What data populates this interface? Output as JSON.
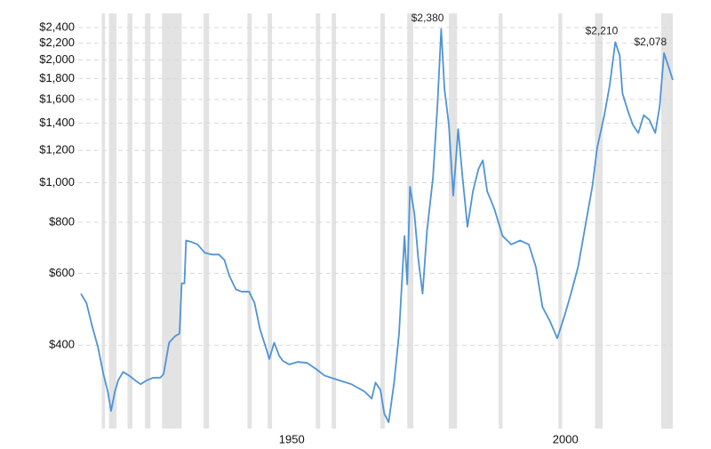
{
  "chart_data": {
    "type": "line",
    "log_scale": true,
    "grid": true,
    "color": "#4f94d4",
    "shade_color": "#e3e3e3",
    "x": [
      1911.5,
      1912.5,
      1913.5,
      1914.6,
      1915.6,
      1916.4,
      1917.0,
      1917.7,
      1918.3,
      1919.2,
      1920.3,
      1921.4,
      1922.4,
      1923.5,
      1924.7,
      1926.0,
      1926.6,
      1927.6,
      1928.7,
      1929.5,
      1929.9,
      1930.4,
      1930.7,
      1931.7,
      1932.8,
      1934.1,
      1935.4,
      1936.7,
      1937.7,
      1938.6,
      1939.8,
      1940.9,
      1942.2,
      1943.2,
      1944.2,
      1945.5,
      1945.9,
      1946.8,
      1947.7,
      1948.4,
      1949.5,
      1951.1,
      1952.8,
      1954.4,
      1956.0,
      1958.4,
      1960.9,
      1963.3,
      1964.6,
      1965.3,
      1966.2,
      1966.9,
      1967.7,
      1968.7,
      1969.6,
      1970.6,
      1971.1,
      1971.6,
      1972.4,
      1973.1,
      1973.9,
      1974.7,
      1975.8,
      1976.6,
      1977.3,
      1977.9,
      1978.7,
      1979.5,
      1980.4,
      1981.2,
      1982.1,
      1983.1,
      1984.1,
      1984.9,
      1985.7,
      1987.0,
      1988.5,
      1990.1,
      1991.7,
      1993.3,
      1994.6,
      1995.8,
      1997.1,
      1998.5,
      1999.8,
      2001.0,
      2002.3,
      2003.6,
      2004.9,
      2005.8,
      2007.1,
      2008.1,
      2009.1,
      2009.9,
      2010.4,
      2011.4,
      2012.3,
      2013.3,
      2014.3,
      2015.3,
      2016.4,
      2017.2,
      2018.0,
      2018.8,
      2019.6
    ],
    "values": [
      535,
      508,
      448,
      396,
      340,
      308,
      276,
      308,
      328,
      344,
      337,
      328,
      321,
      328,
      333,
      333,
      340,
      406,
      421,
      427,
      567,
      567,
      722,
      716,
      706,
      674,
      667,
      667,
      647,
      592,
      548,
      541,
      541,
      508,
      438,
      386,
      370,
      406,
      377,
      366,
      359,
      364,
      362,
      350,
      337,
      329,
      321,
      308,
      296,
      324,
      311,
      272,
      259,
      324,
      427,
      741,
      564,
      978,
      842,
      654,
      535,
      760,
      1030,
      1536,
      2380,
      1697,
      1387,
      930,
      1353,
      1030,
      780,
      953,
      1080,
      1135,
      953,
      864,
      741,
      706,
      722,
      706,
      622,
      496,
      460,
      416,
      471,
      535,
      622,
      780,
      978,
      1220,
      1464,
      1740,
      2210,
      2051,
      1658,
      1499,
      1387,
      1324,
      1464,
      1427,
      1324,
      1536,
      2078,
      1930,
      1785
    ],
    "xlim": [
      1911.0,
      2019.6
    ],
    "xticks": [
      1950,
      2000
    ],
    "ylim": [
      250,
      2600
    ],
    "yticks": [
      {
        "value": 400,
        "label": "$400"
      },
      {
        "value": 600,
        "label": "$600"
      },
      {
        "value": 800,
        "label": "$800"
      },
      {
        "value": 1000,
        "label": "$1,000"
      },
      {
        "value": 1200,
        "label": "$1,200"
      },
      {
        "value": 1400,
        "label": "$1,400"
      },
      {
        "value": 1600,
        "label": "$1,600"
      },
      {
        "value": 1800,
        "label": "$1,800"
      },
      {
        "value": 2000,
        "label": "$2,000"
      },
      {
        "value": 2200,
        "label": "$2,200"
      },
      {
        "value": 2400,
        "label": "$2,400"
      }
    ],
    "shaded_ranges": [
      [
        1915.3,
        1915.9
      ],
      [
        1916.6,
        1918.0
      ],
      [
        1920.0,
        1920.9
      ],
      [
        1923.2,
        1924.2
      ],
      [
        1926.3,
        1929.9
      ],
      [
        1933.9,
        1934.9
      ],
      [
        1941.9,
        1942.7
      ],
      [
        1945.6,
        1946.4
      ],
      [
        1954.4,
        1955.2
      ],
      [
        1957.3,
        1958.1
      ],
      [
        1966.2,
        1967.0
      ],
      [
        1971.1,
        1972.2
      ],
      [
        1978.7,
        1980.2
      ],
      [
        1987.8,
        1988.5
      ],
      [
        1998.7,
        1999.4
      ],
      [
        2005.4,
        2006.8
      ],
      [
        2017.5,
        2019.6
      ]
    ],
    "annotations": [
      {
        "text": "$2,380",
        "x": 1977.3,
        "y": 2380
      },
      {
        "text": "$2,210",
        "x": 2009.1,
        "y": 2210
      },
      {
        "text": "$2,078",
        "x": 2018.0,
        "y": 2078
      }
    ]
  }
}
